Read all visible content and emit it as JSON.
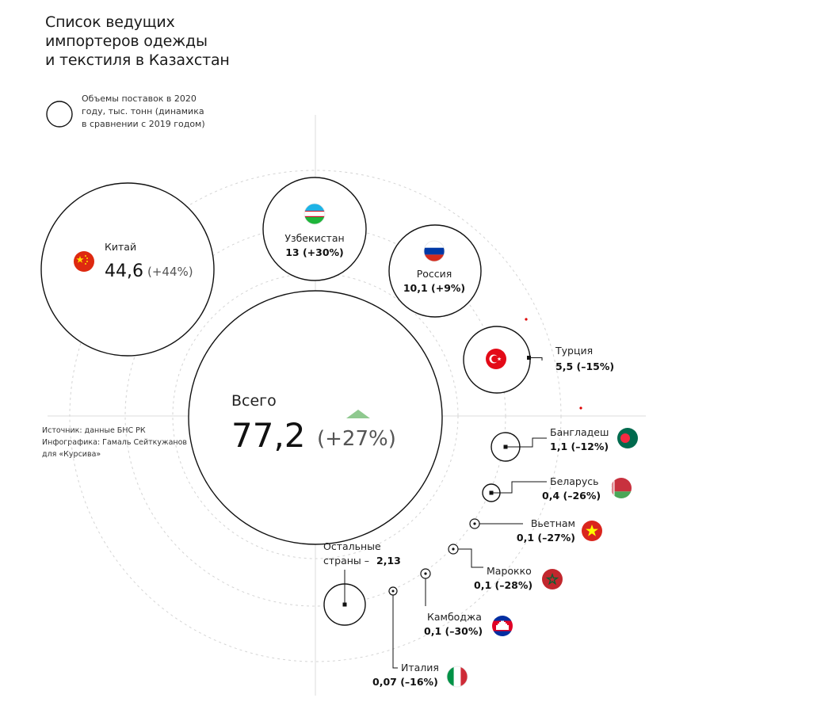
{
  "header": {
    "title": "Список ведущих\nимпортеров одежды\nи текстиля в Казахстан"
  },
  "legend": {
    "text": "Объемы поставок в 2020\nгоду, тыс. тонн (динамика\nв сравнении с 2019 годом)"
  },
  "source": {
    "text": "Источник: данные БНС РК\nИнфографика: Гамаль Сейткужанов\nдля «Курсива»"
  },
  "total": {
    "label": "Всего",
    "value": "77,2",
    "change": "(+27%)",
    "arrow_color": "#8fc98f"
  },
  "countries": [
    {
      "key": "china",
      "name": "Китай",
      "value": "44,6",
      "change": "(+44%)",
      "flag": "china-flag"
    },
    {
      "key": "uzbekistan",
      "name": "Узбекистан",
      "value": "13 (+30%)",
      "flag": "uzbekistan-flag"
    },
    {
      "key": "russia",
      "name": "Россия",
      "value": "10,1 (+9%)",
      "flag": "russia-flag"
    },
    {
      "key": "turkey",
      "name": "Турция",
      "value": "5,5 (–15%)",
      "flag": "turkey-flag"
    },
    {
      "key": "bangladesh",
      "name": "Бангладеш",
      "value": "1,1 (–12%)",
      "flag": "bangladesh-flag"
    },
    {
      "key": "belarus",
      "name": "Беларусь",
      "value": "0,4 (–26%)",
      "flag": "belarus-flag"
    },
    {
      "key": "vietnam",
      "name": "Вьетнам",
      "value": "0,1 (–27%)",
      "flag": "vietnam-flag"
    },
    {
      "key": "morocco",
      "name": "Марокко",
      "value": "0,1 (–28%)",
      "flag": "morocco-flag"
    },
    {
      "key": "cambodia",
      "name": "Камбоджа",
      "value": "0,1 (–30%)",
      "flag": "cambodia-flag"
    },
    {
      "key": "italy",
      "name": "Италия",
      "value": "0,07 (–16%)",
      "flag": "italy-flag"
    }
  ],
  "others": {
    "label_line1": "Остальные",
    "label_line2": "страны –",
    "value": "2,13"
  }
}
